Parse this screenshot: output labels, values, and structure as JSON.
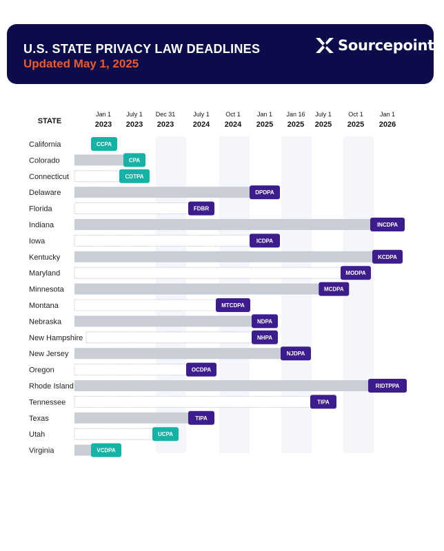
{
  "header": {
    "title": "U.S. STATE PRIVACY LAW DEADLINES",
    "subtitle": "Updated May 1, 2025",
    "logo_text": "Sourcepoint"
  },
  "colors": {
    "header_bg": "#0c0c4a",
    "subtitle": "#ec5a2e",
    "teal": "#14b3a6",
    "purple": "#3d1c8e",
    "bar": "#c9ced6",
    "band": "#f5f5fc"
  },
  "chart_data": {
    "type": "timeline",
    "state_header": "STATE",
    "columns": [
      {
        "date": "Jan 1",
        "year": "2023"
      },
      {
        "date": "July 1",
        "year": "2023"
      },
      {
        "date": "Dec 31",
        "year": "2023"
      },
      {
        "date": "July 1",
        "year": "2024"
      },
      {
        "date": "Oct 1",
        "year": "2024"
      },
      {
        "date": "Jan 1",
        "year": "2025"
      },
      {
        "date": "Jan 16",
        "year": "2025"
      },
      {
        "date": "July 1",
        "year": "2025"
      },
      {
        "date": "Oct 1",
        "year": "2025"
      },
      {
        "date": "Jan 1",
        "year": "2026"
      }
    ],
    "rows": [
      {
        "state": "California",
        "law": "CCPA",
        "effective": "2023-01-01",
        "color": "teal",
        "bar": "none"
      },
      {
        "state": "Colorado",
        "law": "CPA",
        "effective": "2023-07-01",
        "color": "teal",
        "bar": "solid"
      },
      {
        "state": "Connecticut",
        "law": "CDTPA",
        "effective": "2023-07-01",
        "color": "teal",
        "bar": "outline"
      },
      {
        "state": "Delaware",
        "law": "DPDPA",
        "effective": "2025-01-01",
        "color": "purple",
        "bar": "solid"
      },
      {
        "state": "Florida",
        "law": "FDBR",
        "effective": "2024-07-01",
        "color": "purple",
        "bar": "outline"
      },
      {
        "state": "Indiana",
        "law": "INCDPA",
        "effective": "2026-01-01",
        "color": "purple",
        "bar": "solid"
      },
      {
        "state": "Iowa",
        "law": "ICDPA",
        "effective": "2025-01-01",
        "color": "purple",
        "bar": "outline"
      },
      {
        "state": "Kentucky",
        "law": "KCDPA",
        "effective": "2026-01-01",
        "color": "purple",
        "bar": "solid"
      },
      {
        "state": "Maryland",
        "law": "MODPA",
        "effective": "2025-10-01",
        "color": "purple",
        "bar": "outline"
      },
      {
        "state": "Minnesota",
        "law": "MCDPA",
        "effective": "2025-07-31",
        "color": "purple",
        "bar": "solid"
      },
      {
        "state": "Montana",
        "law": "MTCDPA",
        "effective": "2024-10-01",
        "color": "purple",
        "bar": "outline"
      },
      {
        "state": "Nebraska",
        "law": "NDPA",
        "effective": "2025-01-01",
        "color": "purple",
        "bar": "solid"
      },
      {
        "state": "New Hampshire",
        "law": "NHPA",
        "effective": "2025-01-01",
        "color": "purple",
        "bar": "outline"
      },
      {
        "state": "New Jersey",
        "law": "NJDPA",
        "effective": "2025-01-16",
        "color": "purple",
        "bar": "solid"
      },
      {
        "state": "Oregon",
        "law": "OCDPA",
        "effective": "2024-07-01",
        "color": "purple",
        "bar": "outline"
      },
      {
        "state": "Rhode Island",
        "law": "RIDTPPA",
        "effective": "2026-01-01",
        "color": "purple",
        "bar": "solid"
      },
      {
        "state": "Tennessee",
        "law": "TIPA",
        "effective": "2025-07-01",
        "color": "purple",
        "bar": "outline"
      },
      {
        "state": "Texas",
        "law": "TIPA",
        "effective": "2024-07-01",
        "color": "purple",
        "bar": "solid"
      },
      {
        "state": "Utah",
        "law": "UCPA",
        "effective": "2023-12-31",
        "color": "teal",
        "bar": "outline"
      },
      {
        "state": "Virginia",
        "law": "VCDPA",
        "effective": "2023-01-01",
        "color": "teal",
        "bar": "solid"
      }
    ]
  }
}
